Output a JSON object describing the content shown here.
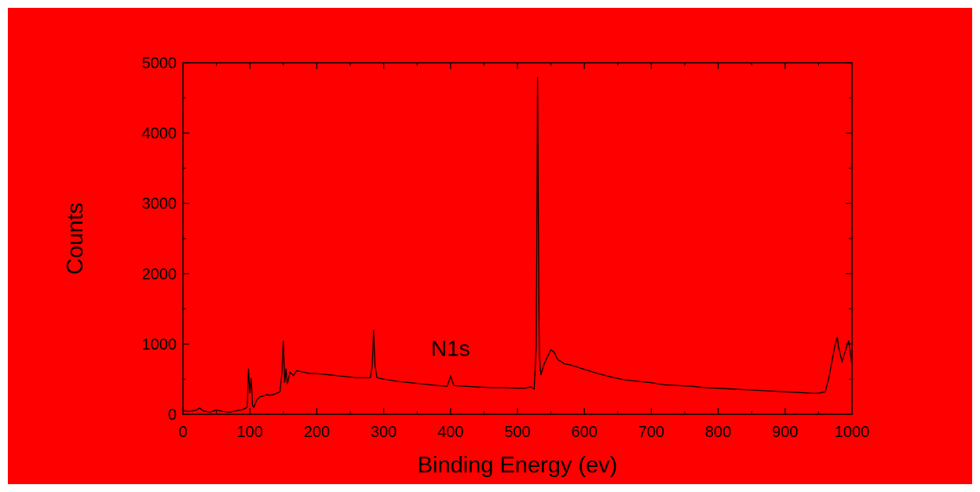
{
  "background_color": "#ff0000",
  "line_color": "#000000",
  "chart_data": {
    "type": "line",
    "title": "",
    "xlabel": "Binding Energy (ev)",
    "ylabel": "Counts",
    "xlim": [
      0,
      1000
    ],
    "ylim": [
      0,
      5000
    ],
    "x_ticks": [
      0,
      100,
      200,
      300,
      400,
      500,
      600,
      700,
      800,
      900,
      1000
    ],
    "y_ticks": [
      0,
      1000,
      2000,
      3000,
      4000,
      5000
    ],
    "x_tick_labels": [
      "0",
      "100",
      "200",
      "300",
      "400",
      "500",
      "600",
      "700",
      "800",
      "900",
      "1000"
    ],
    "y_tick_labels": [
      "0",
      "1000",
      "2000",
      "3000",
      "4000",
      "5000"
    ],
    "grid": false,
    "legend": "none",
    "annotations": [
      {
        "text": "N1s",
        "x": 400,
        "y": 830
      }
    ],
    "series": [
      {
        "x": [
          0,
          10,
          20,
          25,
          30,
          40,
          50,
          60,
          70,
          80,
          90,
          96,
          98,
          100,
          102,
          104,
          106,
          110,
          115,
          120,
          125,
          130,
          135,
          140,
          145,
          148,
          150,
          152,
          154,
          156,
          160,
          165,
          170,
          180,
          190,
          200,
          220,
          240,
          260,
          280,
          283,
          285,
          287,
          290,
          300,
          320,
          340,
          360,
          380,
          395,
          400,
          405,
          420,
          440,
          460,
          480,
          500,
          510,
          520,
          525,
          528,
          530,
          531,
          532,
          533,
          535,
          540,
          545,
          550,
          555,
          560,
          570,
          580,
          600,
          620,
          640,
          660,
          680,
          700,
          720,
          740,
          760,
          780,
          800,
          820,
          840,
          860,
          880,
          900,
          920,
          940,
          950,
          960,
          965,
          970,
          975,
          978,
          980,
          985,
          990,
          995,
          1000
        ],
        "y": [
          50,
          40,
          60,
          90,
          50,
          30,
          60,
          40,
          30,
          50,
          70,
          100,
          650,
          300,
          520,
          120,
          100,
          200,
          250,
          260,
          280,
          270,
          280,
          300,
          320,
          600,
          1050,
          450,
          650,
          430,
          600,
          550,
          620,
          600,
          580,
          580,
          560,
          540,
          520,
          520,
          700,
          1200,
          700,
          520,
          500,
          470,
          450,
          430,
          410,
          400,
          540,
          410,
          400,
          390,
          380,
          380,
          370,
          370,
          390,
          360,
          1000,
          4800,
          3200,
          1500,
          800,
          560,
          720,
          820,
          920,
          880,
          780,
          720,
          700,
          640,
          580,
          530,
          490,
          470,
          450,
          420,
          410,
          400,
          380,
          370,
          360,
          350,
          340,
          330,
          320,
          310,
          300,
          300,
          320,
          500,
          750,
          1000,
          1100,
          950,
          750,
          900,
          1050,
          700
        ]
      }
    ]
  }
}
